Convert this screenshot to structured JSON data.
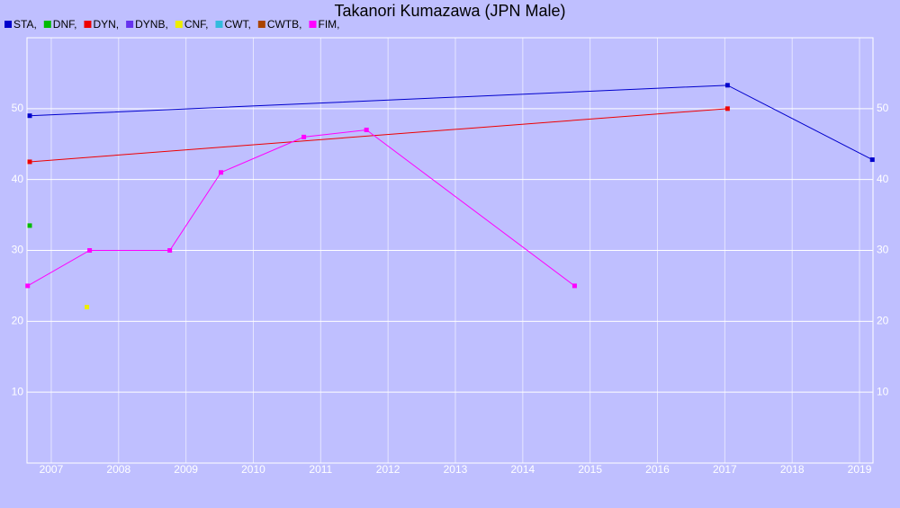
{
  "chart_data": {
    "type": "line",
    "title": "Takanori Kumazawa (JPN Male)",
    "xlim": [
      2006.64,
      2019.2
    ],
    "xticks": [
      2007,
      2008,
      2009,
      2010,
      2011,
      2012,
      2013,
      2014,
      2015,
      2016,
      2017,
      2018,
      2019
    ],
    "ylim": [
      0,
      60
    ],
    "yticks": [
      10,
      20,
      30,
      40,
      50
    ],
    "grid": true,
    "series": [
      {
        "name": "STA,",
        "color": "#0000cc",
        "x": [
          2006.68,
          2017.04,
          2019.19
        ],
        "values": [
          49,
          53.3,
          42.8
        ]
      },
      {
        "name": "DNF,",
        "color": "#00bb00",
        "x": [
          2006.68
        ],
        "values": [
          33.5
        ]
      },
      {
        "name": "DYN,",
        "color": "#ee0000",
        "x": [
          2006.68,
          2017.04
        ],
        "values": [
          42.5,
          50
        ]
      },
      {
        "name": "DYNB,",
        "color": "#6633ee",
        "x": [],
        "values": []
      },
      {
        "name": "CNF,",
        "color": "#eeee00",
        "x": [
          2007.53
        ],
        "values": [
          22
        ]
      },
      {
        "name": "CWT,",
        "color": "#33bbdd",
        "x": [],
        "values": []
      },
      {
        "name": "CWTB,",
        "color": "#aa4400",
        "x": [],
        "values": []
      },
      {
        "name": "FIM,",
        "color": "#ff00ff",
        "x": [
          2006.65,
          2007.57,
          2008.76,
          2009.52,
          2010.75,
          2011.68,
          2014.77
        ],
        "values": [
          25,
          30,
          30,
          41,
          46,
          47,
          25
        ]
      }
    ]
  }
}
